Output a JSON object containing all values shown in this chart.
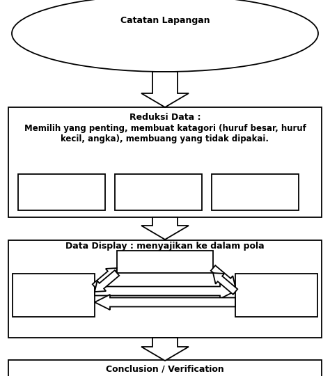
{
  "bg_color": "#ffffff",
  "line_color": "#000000",
  "text_color": "#000000",
  "ellipse_text": "Catatan Lapangan",
  "box1_title": "Reduksi Data :",
  "box1_body": "Memilih yang penting, membuat katagori (huruf besar, huruf\nkecil, angka), membuang yang tidak dipakai.",
  "box2_title": "Data Display : menyajikan ke dalam pola",
  "box3_title": "Conclusion / Verification",
  "title_fontsize": 9,
  "body_fontsize": 8.5,
  "figsize": [
    4.74,
    5.4
  ],
  "dpi": 100
}
